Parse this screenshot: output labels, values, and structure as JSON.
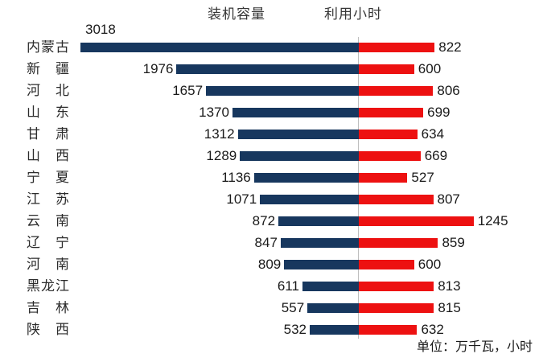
{
  "chart_data": {
    "type": "bar",
    "variant": "horizontal-diverging-tornado",
    "categories": [
      "内蒙古",
      "新疆",
      "河北",
      "山东",
      "甘肃",
      "山西",
      "宁夏",
      "江苏",
      "云南",
      "辽宁",
      "河南",
      "黑龙江",
      "吉林",
      "陕西"
    ],
    "series": [
      {
        "name": "装机容量",
        "side": "left",
        "color": "#17375E",
        "values": [
          3018,
          1976,
          1657,
          1370,
          1312,
          1289,
          1136,
          1071,
          872,
          847,
          809,
          611,
          557,
          532
        ]
      },
      {
        "name": "利用小时",
        "side": "right",
        "color": "#ED1111",
        "values": [
          822,
          600,
          806,
          699,
          634,
          669,
          527,
          807,
          1245,
          859,
          600,
          813,
          815,
          632
        ]
      }
    ],
    "unit_note": "单位：万千瓦，小时",
    "title": "",
    "xlabel": "",
    "ylabel": "",
    "layout": {
      "legend_position": "top",
      "value_labels": "outside-end",
      "first_capacity_label_position": "above-bar",
      "gridlines": false,
      "center_axis": true,
      "left_axis_max": 3018,
      "right_axis_max": 1245
    },
    "colors": {
      "capacity_bar": "#17375E",
      "hours_bar": "#ED1111",
      "axis_line": "#BDBDBD",
      "text": "#1A1A1A"
    }
  }
}
